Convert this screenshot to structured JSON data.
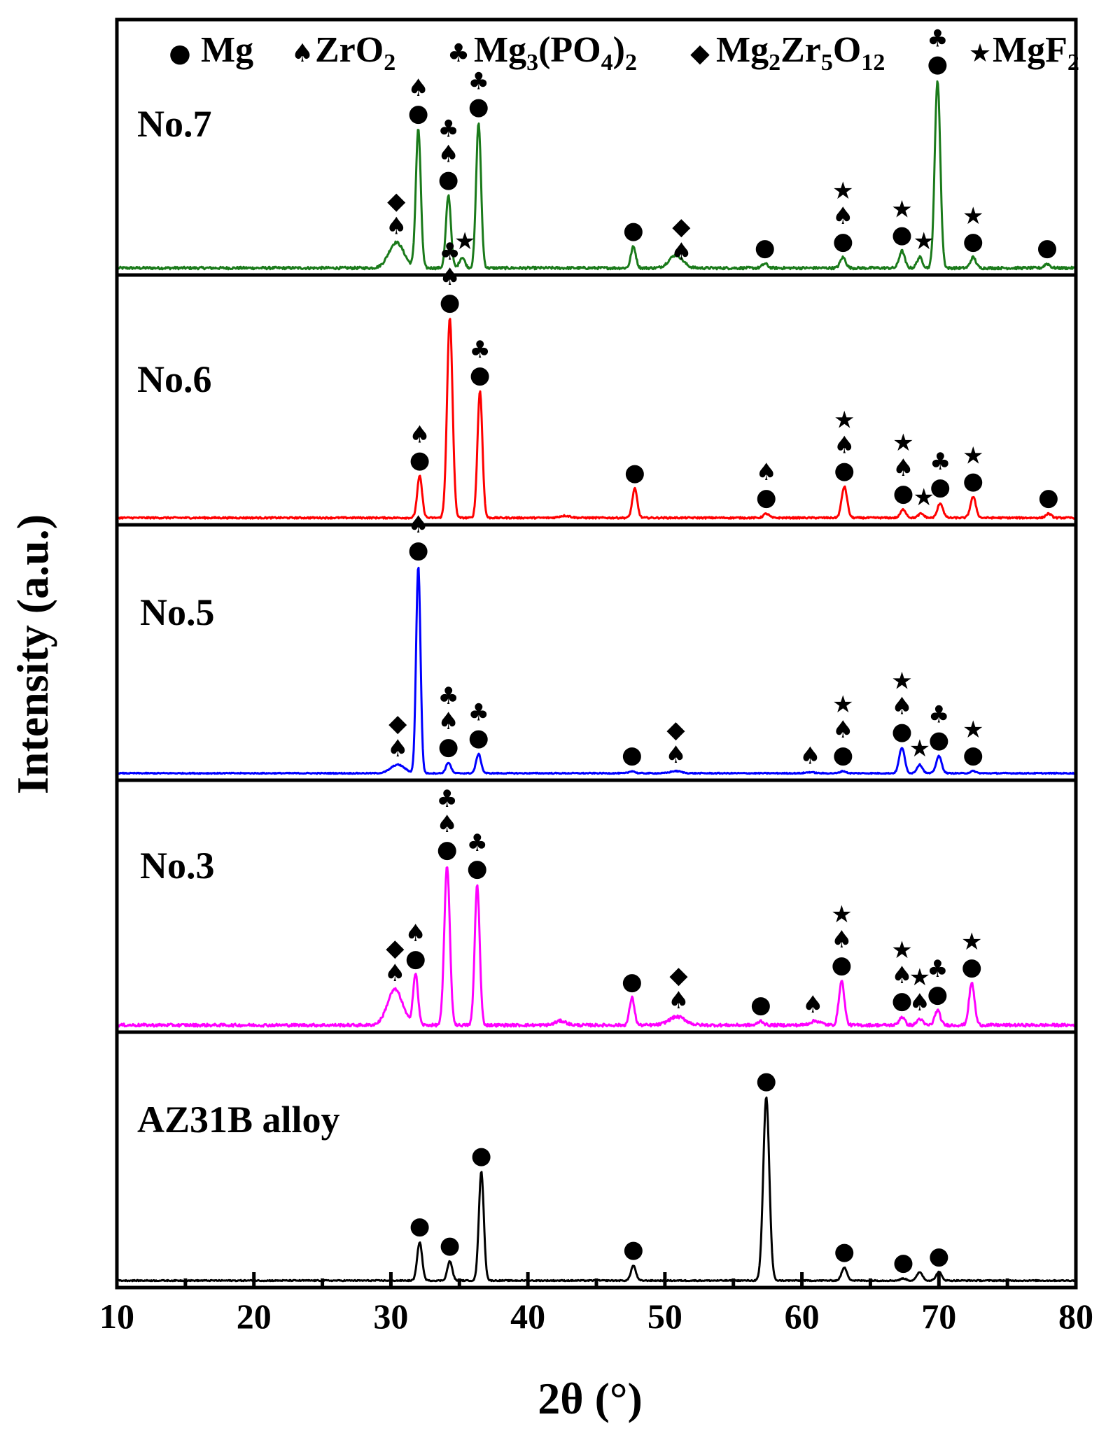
{
  "chart_data": {
    "type": "line",
    "title": "",
    "xlabel": "2θ (°)",
    "ylabel": "Intensity (a.u.)",
    "xlim": [
      10,
      80
    ],
    "xticks": [
      10,
      20,
      30,
      40,
      50,
      60,
      70,
      80
    ],
    "legend": [
      {
        "symbol": "●",
        "name": "Mg"
      },
      {
        "symbol": "♠",
        "name": "ZrO",
        "sub": "2"
      },
      {
        "symbol": "♣",
        "name": "Mg₃(PO₄)₂"
      },
      {
        "symbol": "◆",
        "name": "Mg₂Zr₅O₁₂"
      },
      {
        "symbol": "★",
        "name": "MgF",
        "sub": "2"
      }
    ],
    "legend_segments": {
      "mg3po4": [
        "Mg",
        "3",
        "(PO",
        "4",
        ")",
        "2"
      ],
      "mg2zr5o12": [
        "Mg",
        "2",
        "Zr",
        "5",
        "O",
        "12"
      ]
    },
    "series": [
      {
        "name": "No.7",
        "color": "#1a7a1a",
        "noise": 0.012,
        "peaks": [
          [
            30.4,
            0.12,
            0.55
          ],
          [
            32.0,
            0.65,
            0.18
          ],
          [
            34.2,
            0.34,
            0.18
          ],
          [
            35.2,
            0.05,
            0.2
          ],
          [
            36.4,
            0.68,
            0.18
          ],
          [
            47.7,
            0.1,
            0.18
          ],
          [
            50.8,
            0.06,
            0.5
          ],
          [
            57.3,
            0.02,
            0.2
          ],
          [
            63.0,
            0.05,
            0.2
          ],
          [
            67.3,
            0.08,
            0.2
          ],
          [
            68.6,
            0.05,
            0.2
          ],
          [
            69.9,
            0.88,
            0.2
          ],
          [
            72.5,
            0.05,
            0.2
          ],
          [
            77.9,
            0.02,
            0.2
          ]
        ],
        "markers": [
          {
            "x": 30.4,
            "syms": [
              "♠",
              "◆"
            ]
          },
          {
            "x": 32.0,
            "syms": [
              "●",
              "♠"
            ]
          },
          {
            "x": 34.2,
            "syms": [
              "●",
              "♠",
              "♣"
            ]
          },
          {
            "x": 35.4,
            "syms": [
              "★"
            ]
          },
          {
            "x": 36.4,
            "syms": [
              "●",
              "♣"
            ]
          },
          {
            "x": 47.7,
            "syms": [
              "●"
            ]
          },
          {
            "x": 51.2,
            "syms": [
              "♠",
              "◆"
            ]
          },
          {
            "x": 57.3,
            "syms": [
              "●"
            ]
          },
          {
            "x": 63.0,
            "syms": [
              "●",
              "♠",
              "★"
            ]
          },
          {
            "x": 67.3,
            "syms": [
              "●",
              "★"
            ]
          },
          {
            "x": 68.9,
            "syms": [
              "★"
            ]
          },
          {
            "x": 69.9,
            "syms": [
              "●",
              "♣"
            ]
          },
          {
            "x": 72.5,
            "syms": [
              "●",
              "★"
            ]
          },
          {
            "x": 77.9,
            "syms": [
              "●"
            ]
          }
        ]
      },
      {
        "name": "No.6",
        "color": "#ff0000",
        "noise": 0.008,
        "peaks": [
          [
            32.1,
            0.2,
            0.18
          ],
          [
            34.3,
            0.96,
            0.2
          ],
          [
            36.5,
            0.61,
            0.18
          ],
          [
            42.7,
            0.01,
            0.4
          ],
          [
            47.8,
            0.14,
            0.18
          ],
          [
            57.4,
            0.02,
            0.2
          ],
          [
            63.1,
            0.15,
            0.2
          ],
          [
            67.4,
            0.04,
            0.2
          ],
          [
            68.7,
            0.02,
            0.2
          ],
          [
            70.1,
            0.07,
            0.2
          ],
          [
            72.5,
            0.1,
            0.2
          ],
          [
            78.0,
            0.02,
            0.2
          ]
        ],
        "markers": [
          {
            "x": 32.1,
            "syms": [
              "●",
              "♠"
            ]
          },
          {
            "x": 34.3,
            "syms": [
              "●",
              "♠",
              "♣"
            ]
          },
          {
            "x": 36.5,
            "syms": [
              "●",
              "♣"
            ]
          },
          {
            "x": 47.8,
            "syms": [
              "●"
            ]
          },
          {
            "x": 57.4,
            "syms": [
              "●",
              "♠"
            ]
          },
          {
            "x": 63.1,
            "syms": [
              "●",
              "♠",
              "★"
            ]
          },
          {
            "x": 67.4,
            "syms": [
              "●",
              "♠",
              "★"
            ]
          },
          {
            "x": 68.9,
            "syms": [
              "★"
            ]
          },
          {
            "x": 70.1,
            "syms": [
              "●",
              "♣"
            ]
          },
          {
            "x": 72.5,
            "syms": [
              "●",
              "★"
            ]
          },
          {
            "x": 78.0,
            "syms": [
              "●"
            ]
          }
        ]
      },
      {
        "name": "No.5",
        "color": "#0000ff",
        "noise": 0.005,
        "peaks": [
          [
            30.5,
            0.04,
            0.5
          ],
          [
            32.0,
            0.97,
            0.16
          ],
          [
            34.2,
            0.05,
            0.18
          ],
          [
            36.4,
            0.09,
            0.18
          ],
          [
            47.6,
            0.01,
            0.2
          ],
          [
            50.8,
            0.01,
            0.4
          ],
          [
            60.6,
            0.005,
            0.3
          ],
          [
            63.0,
            0.01,
            0.2
          ],
          [
            67.3,
            0.12,
            0.2
          ],
          [
            68.6,
            0.04,
            0.2
          ],
          [
            70.0,
            0.08,
            0.2
          ],
          [
            72.5,
            0.01,
            0.2
          ]
        ],
        "markers": [
          {
            "x": 30.5,
            "syms": [
              "♠",
              "◆"
            ]
          },
          {
            "x": 32.0,
            "syms": [
              "●",
              "♠"
            ]
          },
          {
            "x": 34.2,
            "syms": [
              "●",
              "♠",
              "♣"
            ]
          },
          {
            "x": 36.4,
            "syms": [
              "●",
              "♣"
            ]
          },
          {
            "x": 47.6,
            "syms": [
              "●"
            ]
          },
          {
            "x": 50.8,
            "syms": [
              "♠",
              "◆"
            ]
          },
          {
            "x": 60.6,
            "syms": [
              "♠"
            ]
          },
          {
            "x": 63.0,
            "syms": [
              "●",
              "♠",
              "★"
            ]
          },
          {
            "x": 67.3,
            "syms": [
              "●",
              "♠",
              "★"
            ]
          },
          {
            "x": 68.6,
            "syms": [
              "★"
            ]
          },
          {
            "x": 70.0,
            "syms": [
              "●",
              "♣"
            ]
          },
          {
            "x": 72.5,
            "syms": [
              "●",
              "★"
            ]
          }
        ]
      },
      {
        "name": "No.3",
        "color": "#ff00ff",
        "noise": 0.014,
        "peaks": [
          [
            30.3,
            0.17,
            0.55
          ],
          [
            31.8,
            0.24,
            0.18
          ],
          [
            34.1,
            0.76,
            0.2
          ],
          [
            36.3,
            0.67,
            0.18
          ],
          [
            42.4,
            0.02,
            0.4
          ],
          [
            47.6,
            0.13,
            0.18
          ],
          [
            50.9,
            0.04,
            0.6
          ],
          [
            57.0,
            0.02,
            0.2
          ],
          [
            61.0,
            0.02,
            0.4
          ],
          [
            62.9,
            0.21,
            0.2
          ],
          [
            67.3,
            0.04,
            0.2
          ],
          [
            68.6,
            0.03,
            0.2
          ],
          [
            69.9,
            0.07,
            0.2
          ],
          [
            72.4,
            0.2,
            0.2
          ]
        ],
        "markers": [
          {
            "x": 30.3,
            "syms": [
              "♠",
              "◆"
            ]
          },
          {
            "x": 31.8,
            "syms": [
              "●",
              "♠"
            ]
          },
          {
            "x": 34.1,
            "syms": [
              "●",
              "♠",
              "♣"
            ]
          },
          {
            "x": 36.3,
            "syms": [
              "●",
              "♣"
            ]
          },
          {
            "x": 47.6,
            "syms": [
              "●"
            ]
          },
          {
            "x": 51.0,
            "syms": [
              "♠",
              "◆"
            ]
          },
          {
            "x": 57.0,
            "syms": [
              "●"
            ]
          },
          {
            "x": 60.8,
            "syms": [
              "♠"
            ]
          },
          {
            "x": 62.9,
            "syms": [
              "●",
              "♠",
              "★"
            ]
          },
          {
            "x": 67.3,
            "syms": [
              "●",
              "♠",
              "★"
            ]
          },
          {
            "x": 68.6,
            "syms": [
              "♠",
              "★"
            ]
          },
          {
            "x": 69.9,
            "syms": [
              "●",
              "♣"
            ]
          },
          {
            "x": 72.4,
            "syms": [
              "●",
              "★"
            ]
          }
        ]
      },
      {
        "name": "AZ31B alloy",
        "color": "#000000",
        "noise": 0.005,
        "peaks": [
          [
            32.1,
            0.18,
            0.18
          ],
          [
            34.3,
            0.09,
            0.18
          ],
          [
            36.6,
            0.51,
            0.18
          ],
          [
            47.7,
            0.07,
            0.18
          ],
          [
            57.4,
            0.86,
            0.22
          ],
          [
            63.1,
            0.06,
            0.2
          ],
          [
            67.4,
            0.01,
            0.2
          ],
          [
            68.6,
            0.04,
            0.2
          ],
          [
            70.0,
            0.04,
            0.2
          ]
        ],
        "markers": [
          {
            "x": 32.1,
            "syms": [
              "●"
            ]
          },
          {
            "x": 34.3,
            "syms": [
              "●"
            ]
          },
          {
            "x": 36.6,
            "syms": [
              "●"
            ]
          },
          {
            "x": 47.7,
            "syms": [
              "●"
            ]
          },
          {
            "x": 57.4,
            "syms": [
              "●"
            ]
          },
          {
            "x": 63.1,
            "syms": [
              "●"
            ]
          },
          {
            "x": 67.4,
            "syms": [
              "●"
            ]
          },
          {
            "x": 70.0,
            "syms": [
              "●"
            ]
          }
        ]
      }
    ]
  }
}
